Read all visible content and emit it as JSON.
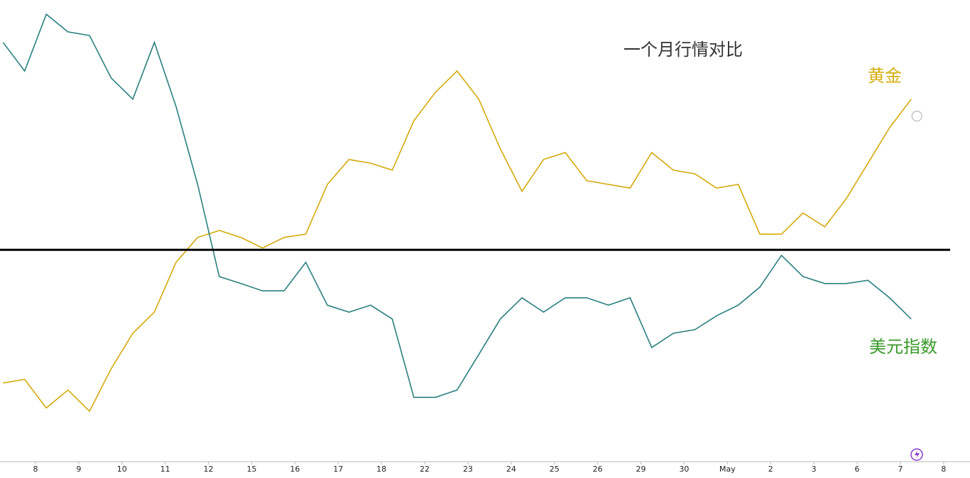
{
  "chart_data": {
    "type": "line",
    "title": "一个月行情对比",
    "x": [
      -0.75,
      -0.25,
      0.25,
      0.75,
      1.25,
      1.75,
      2.25,
      2.75,
      3.25,
      3.75,
      4.25,
      4.75,
      5.25,
      5.75,
      6.25,
      6.75,
      7.25,
      7.75,
      8.25,
      8.75,
      9.25,
      9.75,
      10.25,
      10.75,
      11.25,
      11.75,
      12.25,
      12.75,
      13.25,
      13.75,
      14.25,
      14.75,
      15.25,
      15.75,
      16.25,
      16.75,
      17.25,
      17.75,
      18.25,
      18.75,
      19.25,
      19.75,
      20.25
    ],
    "series": [
      {
        "name": "黄金",
        "color": "#d4a90c",
        "label_color": "#d4ad0c",
        "values": [
          16.9,
          17.7,
          11.5,
          15.4,
          10.8,
          20,
          27.7,
          32.3,
          43.1,
          48.5,
          50,
          48.5,
          46.2,
          48.5,
          49.2,
          60,
          65.4,
          64.6,
          63.1,
          73.8,
          80,
          84.6,
          78.5,
          67.7,
          58.5,
          65.4,
          66.9,
          60.8,
          60,
          59.2,
          66.9,
          63.1,
          62.3,
          59.2,
          60,
          49.2,
          49.2,
          53.8,
          50.8,
          56.9,
          64.6,
          72.3,
          78.5
        ]
      },
      {
        "name": "美元指数",
        "color": "#2a7f80",
        "label_color": "#3a9a2a",
        "values": [
          90.8,
          84.6,
          96.9,
          93.1,
          92.3,
          83.1,
          78.5,
          90.8,
          76.9,
          60,
          40,
          38.5,
          36.9,
          36.9,
          43.1,
          33.8,
          32.3,
          33.8,
          30.8,
          13.8,
          13.8,
          15.4,
          23.1,
          30.8,
          35.4,
          32.3,
          35.4,
          35.4,
          33.8,
          35.4,
          24.6,
          27.7,
          28.5,
          31.5,
          33.8,
          37.7,
          44.6,
          40,
          38.5,
          38.5,
          39.2,
          35.4,
          30.8
        ]
      }
    ],
    "reference_line": 45.8,
    "xlim": [
      -0.82,
      21.61
    ],
    "ylim": [
      0,
      100
    ],
    "xticks": [
      {
        "value": 0,
        "label": "8"
      },
      {
        "value": 1,
        "label": "9"
      },
      {
        "value": 2,
        "label": "10"
      },
      {
        "value": 3,
        "label": "11"
      },
      {
        "value": 4,
        "label": "12"
      },
      {
        "value": 5,
        "label": "15"
      },
      {
        "value": 6,
        "label": "16"
      },
      {
        "value": 7,
        "label": "17"
      },
      {
        "value": 8,
        "label": "18"
      },
      {
        "value": 9,
        "label": "22"
      },
      {
        "value": 10,
        "label": "23"
      },
      {
        "value": 11,
        "label": "24"
      },
      {
        "value": 12,
        "label": "25"
      },
      {
        "value": 13,
        "label": "26"
      },
      {
        "value": 14,
        "label": "29"
      },
      {
        "value": 15,
        "label": "30"
      },
      {
        "value": 16,
        "label": "May"
      },
      {
        "value": 17,
        "label": "2"
      },
      {
        "value": 18,
        "label": "3"
      },
      {
        "value": 19,
        "label": "6"
      },
      {
        "value": 20,
        "label": "7"
      },
      {
        "value": 21,
        "label": "8"
      }
    ]
  }
}
